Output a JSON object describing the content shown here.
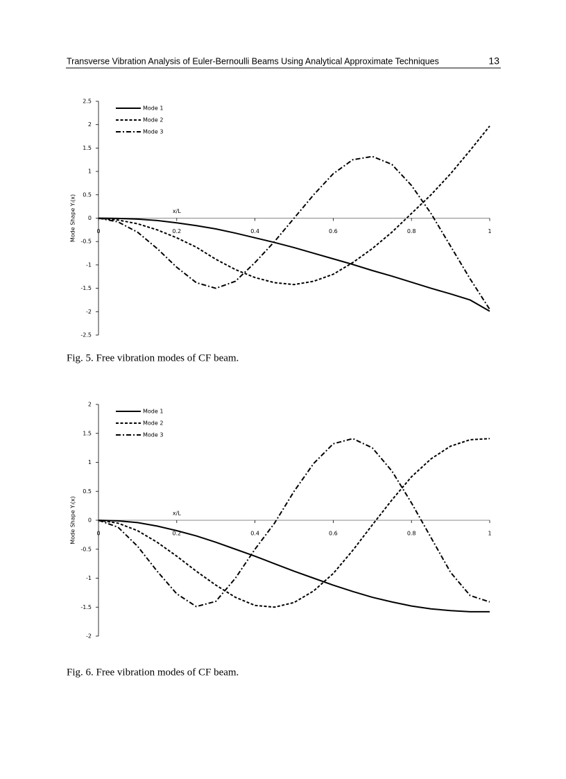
{
  "header": {
    "title": "Transverse Vibration Analysis of Euler-Bernoulli Beams Using Analytical Approximate Techniques",
    "page_number": "13"
  },
  "chart_data": [
    {
      "type": "line",
      "xlabel": "x/L",
      "ylabel": "Mode Shape Yᵢ(x)",
      "x": [
        0,
        0.05,
        0.1,
        0.15,
        0.2,
        0.25,
        0.3,
        0.35,
        0.4,
        0.45,
        0.5,
        0.55,
        0.6,
        0.65,
        0.7,
        0.75,
        0.8,
        0.85,
        0.9,
        0.95,
        1
      ],
      "xlim": [
        0,
        1
      ],
      "xticks": [
        0,
        0.2,
        0.4,
        0.6,
        0.8,
        1
      ],
      "ylim": [
        -2.5,
        2.5
      ],
      "yticks": [
        2.5,
        2,
        1.5,
        1,
        0.5,
        0,
        -0.5,
        -1,
        -1.5,
        -2,
        -2.5
      ],
      "legend": "upper left",
      "series": [
        {
          "name": "Mode 1",
          "color": "#000000",
          "style": "solid",
          "values": [
            0,
            -0.005,
            -0.02,
            -0.05,
            -0.1,
            -0.16,
            -0.23,
            -0.32,
            -0.42,
            -0.52,
            -0.63,
            -0.75,
            -0.87,
            -0.99,
            -1.12,
            -1.24,
            -1.37,
            -1.5,
            -1.62,
            -1.75,
            -1.99
          ]
        },
        {
          "name": "Mode 2",
          "color": "#000000",
          "style": "dashed",
          "values": [
            0,
            -0.04,
            -0.12,
            -0.25,
            -0.42,
            -0.62,
            -0.88,
            -1.1,
            -1.27,
            -1.38,
            -1.42,
            -1.35,
            -1.2,
            -0.95,
            -0.65,
            -0.3,
            0.1,
            0.5,
            0.95,
            1.45,
            1.97
          ]
        },
        {
          "name": "Mode 3",
          "color": "#000000",
          "style": "dashdot",
          "values": [
            0,
            -0.08,
            -0.3,
            -0.65,
            -1.05,
            -1.38,
            -1.5,
            -1.35,
            -0.95,
            -0.5,
            0,
            0.5,
            0.95,
            1.25,
            1.32,
            1.15,
            0.7,
            0.1,
            -0.6,
            -1.3,
            -1.95
          ]
        }
      ],
      "caption": "Fig. 5. Free vibration modes of CF beam."
    },
    {
      "type": "line",
      "xlabel": "x/L",
      "ylabel": "Mode Shape Yᵢ(x)",
      "x": [
        0,
        0.05,
        0.1,
        0.15,
        0.2,
        0.25,
        0.3,
        0.35,
        0.4,
        0.45,
        0.5,
        0.55,
        0.6,
        0.65,
        0.7,
        0.75,
        0.8,
        0.85,
        0.9,
        0.95,
        1
      ],
      "xlim": [
        0,
        1
      ],
      "xticks": [
        0,
        0.2,
        0.4,
        0.6,
        0.8,
        1
      ],
      "ylim": [
        -2,
        2
      ],
      "yticks": [
        2,
        1.5,
        1,
        0.5,
        0,
        -0.5,
        -1,
        -1.5,
        -2
      ],
      "legend": "upper left",
      "series": [
        {
          "name": "Mode 1",
          "color": "#000000",
          "style": "solid",
          "values": [
            0,
            -0.01,
            -0.04,
            -0.1,
            -0.18,
            -0.27,
            -0.38,
            -0.5,
            -0.62,
            -0.75,
            -0.88,
            -1.0,
            -1.12,
            -1.23,
            -1.33,
            -1.41,
            -1.48,
            -1.53,
            -1.56,
            -1.58,
            -1.58
          ]
        },
        {
          "name": "Mode 2",
          "color": "#000000",
          "style": "dashed",
          "values": [
            0,
            -0.05,
            -0.18,
            -0.38,
            -0.62,
            -0.88,
            -1.12,
            -1.33,
            -1.47,
            -1.5,
            -1.42,
            -1.22,
            -0.92,
            -0.52,
            -0.08,
            0.35,
            0.75,
            1.06,
            1.28,
            1.39,
            1.41
          ]
        },
        {
          "name": "Mode 3",
          "color": "#000000",
          "style": "dashdot",
          "values": [
            0,
            -0.12,
            -0.45,
            -0.88,
            -1.27,
            -1.49,
            -1.4,
            -1.0,
            -0.5,
            -0.05,
            0.5,
            0.98,
            1.32,
            1.41,
            1.25,
            0.85,
            0.3,
            -0.3,
            -0.9,
            -1.3,
            -1.41
          ]
        }
      ],
      "caption": "Fig. 6. Free vibration modes of CF beam."
    }
  ]
}
